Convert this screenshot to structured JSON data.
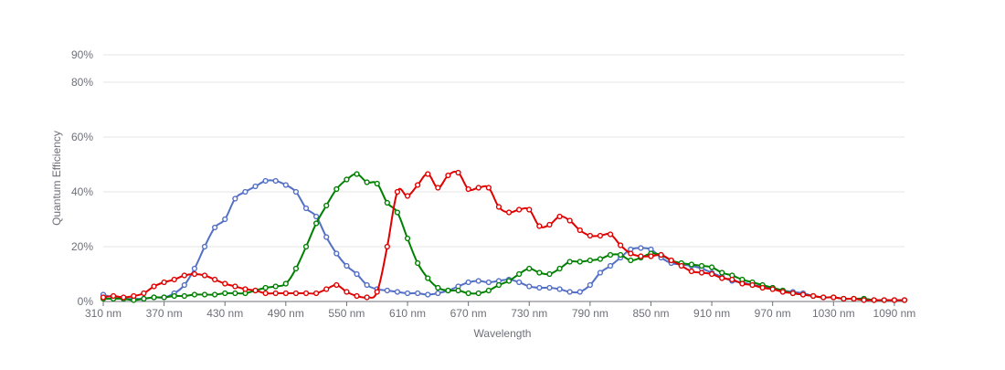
{
  "chart_data": {
    "type": "line",
    "xlabel": "Wavelength",
    "ylabel": "Quantum Efficiency",
    "xlim": [
      310,
      1100
    ],
    "ylim": [
      0,
      90
    ],
    "x_ticks": [
      310,
      370,
      430,
      490,
      550,
      610,
      670,
      730,
      790,
      850,
      910,
      970,
      1030,
      1090
    ],
    "x_tick_labels": [
      "310 nm",
      "370 nm",
      "430 nm",
      "490 nm",
      "550 nm",
      "610 nm",
      "670 nm",
      "730 nm",
      "790 nm",
      "850 nm",
      "910 nm",
      "970 nm",
      "1030 nm",
      "1090 nm"
    ],
    "y_ticks": [
      0,
      20,
      40,
      60,
      80,
      90
    ],
    "y_tick_labels": [
      "0%",
      "20%",
      "40%",
      "60%",
      "80%",
      "90%"
    ],
    "grid": true,
    "x": [
      310,
      320,
      330,
      340,
      350,
      360,
      370,
      380,
      390,
      400,
      410,
      420,
      430,
      440,
      450,
      460,
      470,
      480,
      490,
      500,
      510,
      520,
      530,
      540,
      550,
      560,
      570,
      580,
      590,
      600,
      610,
      620,
      630,
      640,
      650,
      660,
      670,
      680,
      690,
      700,
      710,
      720,
      730,
      740,
      750,
      760,
      770,
      780,
      790,
      800,
      810,
      820,
      830,
      840,
      850,
      860,
      870,
      880,
      890,
      900,
      910,
      920,
      930,
      940,
      950,
      960,
      970,
      980,
      990,
      1000,
      1010,
      1020,
      1030,
      1040,
      1050,
      1060,
      1070,
      1080,
      1090,
      1100
    ],
    "series": [
      {
        "color": "#5470c6",
        "values": [
          2.5,
          1.5,
          1,
          1,
          1,
          1.5,
          1.5,
          3,
          6,
          12,
          20,
          27,
          30,
          37.5,
          40,
          42,
          44,
          44,
          42.5,
          40,
          34,
          31,
          23.5,
          17.5,
          13,
          10,
          6,
          4.5,
          4,
          3.5,
          3,
          3,
          2.5,
          3,
          4,
          5.5,
          7,
          7.5,
          7,
          7.5,
          8,
          7,
          5.5,
          5,
          5,
          4.5,
          3.5,
          3.5,
          6,
          10.5,
          13,
          16,
          19,
          19.5,
          19,
          16,
          14,
          13.5,
          13,
          12,
          10.5,
          9,
          7.5,
          7,
          6,
          5.5,
          5,
          4,
          3.5,
          3,
          2,
          1.5,
          1.5,
          1,
          1,
          1,
          0.5,
          0.5,
          0.5,
          0.5
        ]
      },
      {
        "color": "#008000",
        "values": [
          1,
          1,
          1,
          0.5,
          1,
          1.5,
          1.5,
          2,
          2,
          2.5,
          2.5,
          2.5,
          3,
          3,
          3,
          4,
          5,
          5.5,
          6.5,
          12,
          20,
          28.5,
          35,
          41,
          44.5,
          46.5,
          43.5,
          43,
          36,
          32.5,
          23,
          14,
          8.5,
          5,
          4,
          4,
          3,
          3,
          4,
          6,
          7.5,
          10,
          12,
          10.5,
          10,
          12,
          14.5,
          14.5,
          15,
          15.5,
          17,
          17,
          15,
          16,
          17.5,
          17,
          15,
          14,
          13.5,
          13,
          12.5,
          10.5,
          9.5,
          8,
          7,
          6,
          5,
          4,
          3,
          2.5,
          2,
          1.5,
          1.5,
          1,
          1,
          1,
          0.5,
          0.5,
          0.5,
          0.5
        ]
      },
      {
        "color": "#e00000",
        "values": [
          1.5,
          2,
          1.5,
          2,
          3,
          5.5,
          7,
          8,
          9.5,
          10,
          9.5,
          8,
          6.5,
          5.5,
          4.5,
          4,
          3,
          3,
          3,
          3,
          3,
          3,
          4.5,
          6,
          3.5,
          2,
          1.5,
          3.5,
          20,
          40,
          38.5,
          42.5,
          46.5,
          41.5,
          46,
          47,
          41,
          41.5,
          41.5,
          34.5,
          32.5,
          33.5,
          33.5,
          27.5,
          28,
          31,
          29.5,
          26,
          24,
          24,
          24.5,
          20.5,
          17.5,
          16.5,
          16.5,
          17,
          15,
          13,
          11,
          10.5,
          10,
          8.5,
          8,
          6.5,
          6,
          5,
          4.5,
          3.5,
          3,
          2.5,
          2,
          1.5,
          1.5,
          1,
          1,
          0.5,
          0.5,
          0.5,
          0.5,
          0.5
        ]
      }
    ]
  }
}
